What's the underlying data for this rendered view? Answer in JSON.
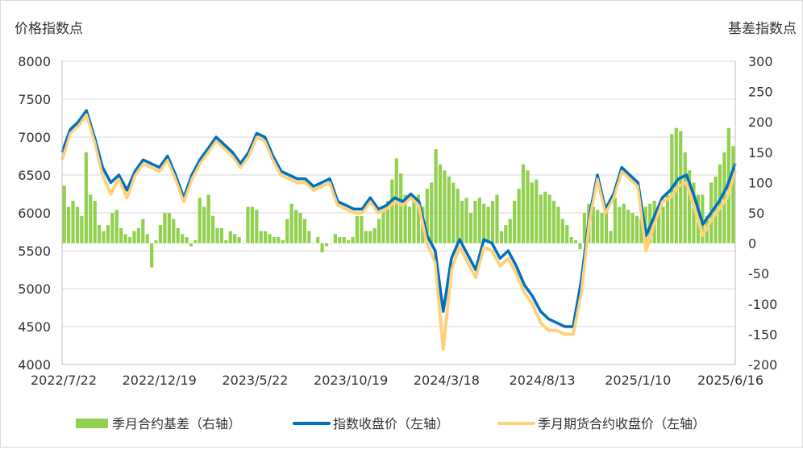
{
  "chart_data": {
    "type": "line",
    "y_left_title": "价格指数点",
    "y_right_title": "基差指数点",
    "y_left_ticks": [
      "8000",
      "7500",
      "7000",
      "6500",
      "6000",
      "5500",
      "5000",
      "4500",
      "4000"
    ],
    "y_right_ticks": [
      "300",
      "250",
      "200",
      "150",
      "100",
      "50",
      "0",
      "-50",
      "-100",
      "-150",
      "-200"
    ],
    "x_ticks": [
      "2022/7/22",
      "2022/12/19",
      "2023/5/22",
      "2023/10/19",
      "2024/3/18",
      "2024/8/13",
      "2025/1/10",
      "2025/6/16"
    ],
    "ylim_left": [
      4000,
      8000
    ],
    "ylim_right": [
      -200,
      300
    ],
    "grid": "horizontal",
    "legend_position": "bottom",
    "series": [
      {
        "name": "季月合约基差（右轴）",
        "type": "bar",
        "axis": "right",
        "color": "#92d050",
        "values": [
          95,
          60,
          70,
          60,
          45,
          150,
          80,
          70,
          30,
          20,
          30,
          50,
          55,
          25,
          15,
          10,
          20,
          25,
          40,
          15,
          -40,
          5,
          30,
          50,
          50,
          40,
          25,
          15,
          10,
          -5,
          5,
          75,
          60,
          80,
          45,
          25,
          25,
          5,
          20,
          15,
          10,
          0,
          60,
          60,
          55,
          20,
          20,
          15,
          10,
          10,
          5,
          40,
          65,
          55,
          50,
          40,
          20,
          0,
          10,
          -15,
          -5,
          0,
          15,
          10,
          10,
          5,
          10,
          45,
          45,
          20,
          20,
          25,
          40,
          60,
          70,
          105,
          140,
          115,
          80,
          60,
          70,
          80,
          60,
          90,
          100,
          155,
          130,
          120,
          110,
          100,
          90,
          70,
          75,
          50,
          70,
          75,
          65,
          60,
          70,
          80,
          20,
          30,
          40,
          70,
          90,
          130,
          120,
          100,
          105,
          80,
          85,
          80,
          70,
          60,
          40,
          30,
          10,
          5,
          -10,
          50,
          65,
          60,
          55,
          50,
          60,
          20,
          75,
          60,
          65,
          55,
          50,
          45,
          40,
          60,
          65,
          70,
          55,
          60,
          80,
          180,
          190,
          185,
          150,
          120,
          100,
          80,
          80,
          45,
          100,
          110,
          130,
          150,
          190,
          160
        ]
      },
      {
        "name": "指数收盘价（左轴）",
        "type": "line",
        "axis": "left",
        "color": "#0070c0",
        "values": [
          6800,
          7100,
          7200,
          7350,
          7000,
          6600,
          6400,
          6500,
          6300,
          6550,
          6700,
          6650,
          6600,
          6750,
          6500,
          6200,
          6500,
          6700,
          6850,
          7000,
          6900,
          6800,
          6650,
          6800,
          7050,
          7000,
          6750,
          6550,
          6500,
          6450,
          6450,
          6350,
          6400,
          6450,
          6150,
          6100,
          6050,
          6050,
          6200,
          6050,
          6100,
          6200,
          6150,
          6250,
          6150,
          5700,
          5500,
          4700,
          5400,
          5650,
          5450,
          5250,
          5650,
          5600,
          5400,
          5500,
          5300,
          5050,
          4900,
          4700,
          4600,
          4550,
          4500,
          4500,
          5100,
          5950,
          6500,
          6050,
          6250,
          6600,
          6500,
          6400,
          5700,
          5950,
          6200,
          6300,
          6450,
          6500,
          6200,
          5850,
          6000,
          6150,
          6350,
          6650
        ]
      },
      {
        "name": "季月期货合约收盘价（左轴）",
        "type": "line",
        "axis": "left",
        "color": "#ffd27a",
        "values": [
          6700,
          7050,
          7150,
          7300,
          6950,
          6500,
          6250,
          6450,
          6200,
          6500,
          6650,
          6600,
          6550,
          6700,
          6450,
          6150,
          6450,
          6650,
          6800,
          6950,
          6850,
          6750,
          6600,
          6750,
          7000,
          6950,
          6700,
          6500,
          6450,
          6400,
          6400,
          6300,
          6350,
          6400,
          6100,
          6050,
          6000,
          6000,
          6150,
          6000,
          6050,
          6150,
          6100,
          6200,
          6100,
          5600,
          5350,
          4200,
          5250,
          5550,
          5350,
          5150,
          5550,
          5500,
          5300,
          5400,
          5200,
          4950,
          4800,
          4550,
          4450,
          4450,
          4400,
          4400,
          4950,
          5900,
          6450,
          6000,
          6200,
          6550,
          6450,
          6350,
          5500,
          5850,
          6150,
          6200,
          6350,
          6400,
          6050,
          5700,
          5900,
          6050,
          6200,
          6550
        ]
      }
    ]
  }
}
